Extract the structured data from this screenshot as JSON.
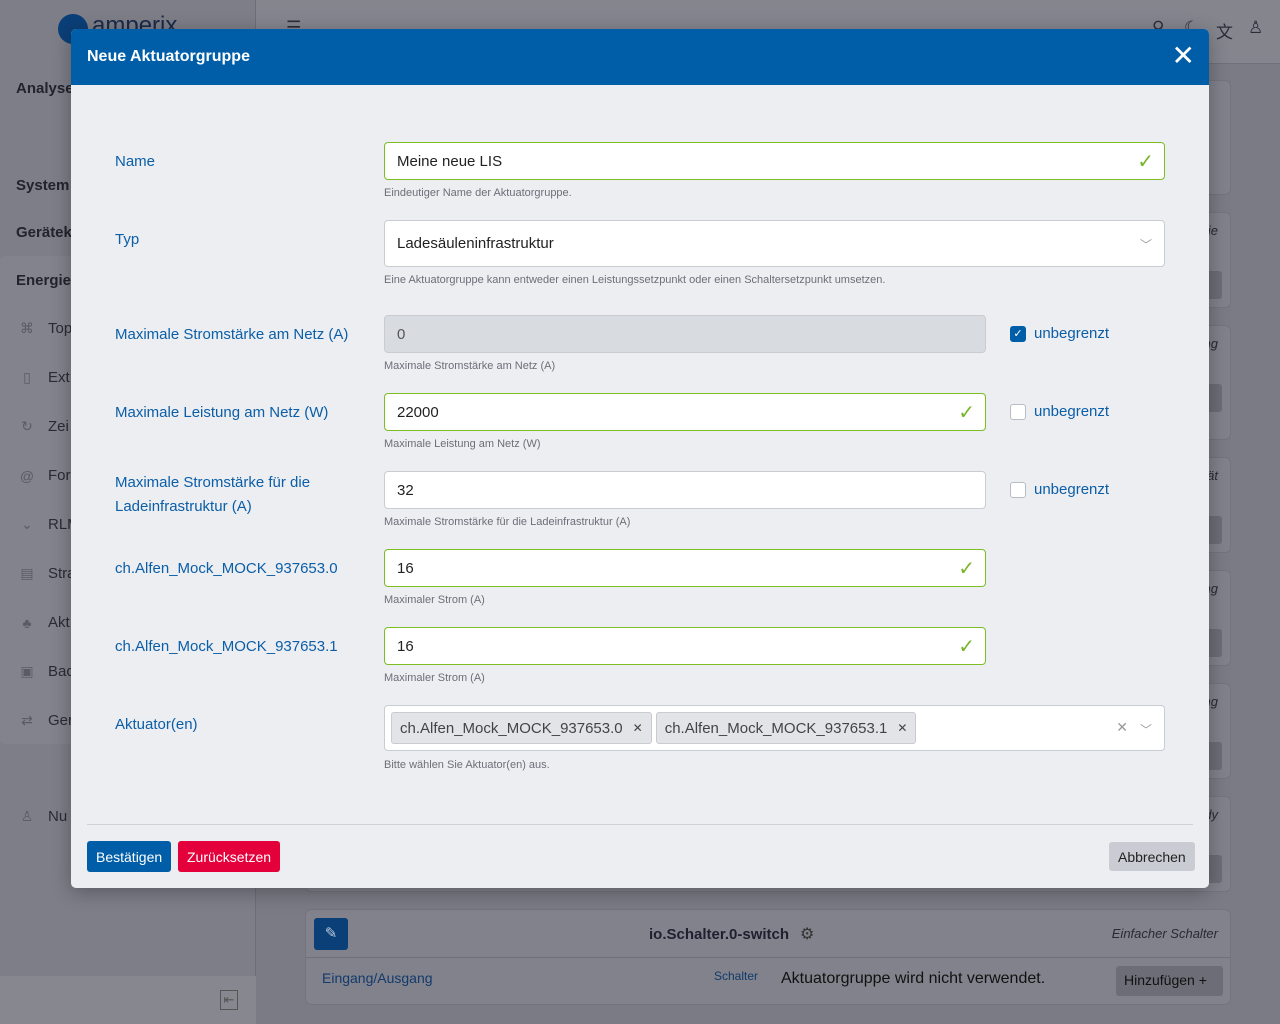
{
  "app": {
    "logo_text": "amperix"
  },
  "sidebar": {
    "sections": [
      "Analyse",
      "System",
      "Gerätek",
      "Energie"
    ],
    "items": [
      {
        "label": "Top",
        "icon": "topology-icon"
      },
      {
        "label": "Ext.",
        "icon": "sensor-icon"
      },
      {
        "label": "Zei",
        "icon": "clock-refresh-icon"
      },
      {
        "label": "For",
        "icon": "at-icon"
      },
      {
        "label": "RLM",
        "icon": "chevron-down-icon"
      },
      {
        "label": "Stra",
        "icon": "documents-icon"
      },
      {
        "label": "Akt",
        "icon": "hierarchy-icon"
      },
      {
        "label": "Bac",
        "icon": "save-icon"
      },
      {
        "label": "Ger",
        "icon": "swap-icon"
      }
    ],
    "user_item": {
      "label": "Nu",
      "icon": "users-icon"
    }
  },
  "background_cards": {
    "fragments": [
      "ie",
      "ng",
      "ät",
      "ng",
      "ng",
      "dy"
    ],
    "switch_card": {
      "title": "io.Schalter.0-switch",
      "type": "Einfacher Schalter",
      "col1": "Eingang/Ausgang",
      "col2": "Schalter",
      "status": "Aktuatorgruppe wird nicht verwendet.",
      "add_label": "Hinzufügen"
    }
  },
  "modal": {
    "title": "Neue Aktuatorgruppe",
    "fields": {
      "name": {
        "label": "Name",
        "value": "Meine neue LIS",
        "hint": "Eindeutiger Name der Aktuatorgruppe."
      },
      "typ": {
        "label": "Typ",
        "value": "Ladesäuleninfrastruktur",
        "hint": "Eine Aktuatorgruppe kann entweder einen Leistungssetzpunkt oder einen Schaltersetzpunkt umsetzen."
      },
      "max_current_grid": {
        "label": "Maximale Stromstärke am Netz (A)",
        "value": "0",
        "hint": "Maximale Stromstärke am Netz (A)",
        "unlimited_label": "unbegrenzt",
        "unlimited": true
      },
      "max_power_grid": {
        "label": "Maximale Leistung am Netz (W)",
        "value": "22000",
        "hint": "Maximale Leistung am Netz (W)",
        "unlimited_label": "unbegrenzt",
        "unlimited": false
      },
      "max_current_infra": {
        "label": "Maximale Stromstärke für die Ladeinfrastruktur (A)",
        "value": "32",
        "hint": "Maximale Stromstärke für die Ladeinfrastruktur (A)",
        "unlimited_label": "unbegrenzt",
        "unlimited": false
      },
      "actuator0": {
        "label": "ch.Alfen_Mock_MOCK_937653.0",
        "value": "16",
        "hint": "Maximaler Strom (A)"
      },
      "actuator1": {
        "label": "ch.Alfen_Mock_MOCK_937653.1",
        "value": "16",
        "hint": "Maximaler Strom (A)"
      },
      "actuators": {
        "label": "Aktuator(en)",
        "tags": [
          "ch.Alfen_Mock_MOCK_937653.0",
          "ch.Alfen_Mock_MOCK_937653.1"
        ],
        "hint": "Bitte wählen Sie Aktuator(en) aus."
      }
    },
    "buttons": {
      "confirm": "Bestätigen",
      "reset": "Zurücksetzen",
      "cancel": "Abbrechen"
    },
    "colors": {
      "header": "#005ea8",
      "valid": "#7cbd24",
      "reset": "#e4003a"
    }
  }
}
